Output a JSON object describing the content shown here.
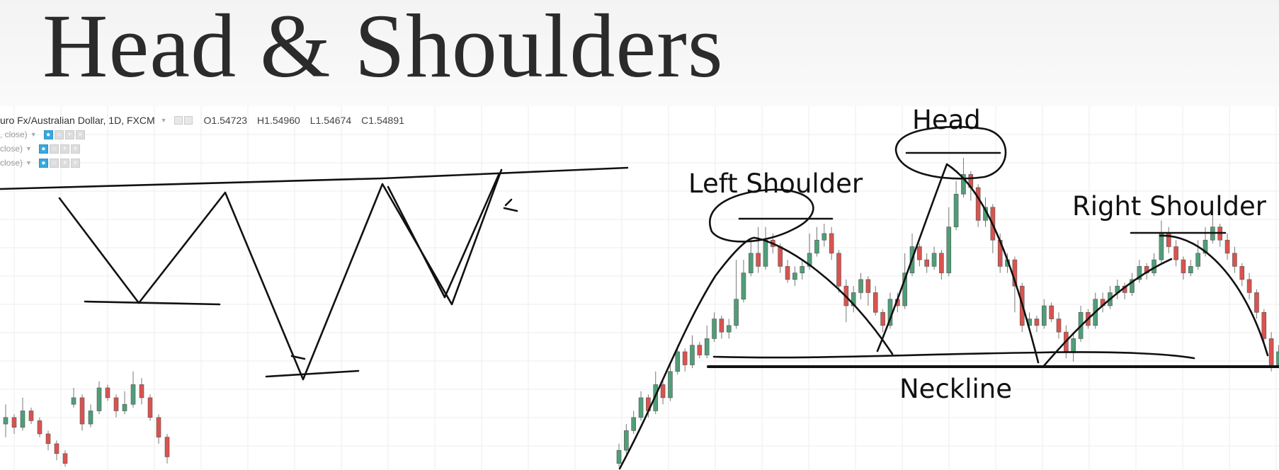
{
  "title": "Head & Shoulders",
  "symbol_bar": {
    "symbol": "uro Fx/Australian Dollar, 1D, FXCM",
    "open": "O1.54723",
    "high": "H1.54960",
    "low": "L1.54674",
    "close": "C1.54891"
  },
  "indicators": [
    ", close)",
    "close)",
    "close)"
  ],
  "annotations": {
    "head": "Head",
    "left_shoulder": "Left Shoulder",
    "right_shoulder": "Right Shoulder",
    "neckline": "Neckline"
  },
  "colors": {
    "up_candle": "#4f9e78",
    "down_candle": "#d9534f",
    "ink": "#111111",
    "grid": "#eeeeee",
    "eye_button": "#38a8e0"
  },
  "chart_data": {
    "type": "candlestick",
    "title": "Head & Shoulders",
    "price_scale": "unlabeled (higher = up)",
    "note": "Relative price levels read from the drawing (0 = bottom, 100 = top of chart area); axis values are not printed",
    "segments": [
      {
        "name": "left",
        "candles": [
          [
            14,
            16,
            20,
            10
          ],
          [
            16,
            13,
            17,
            11
          ],
          [
            13,
            18,
            22,
            12
          ],
          [
            18,
            15,
            19,
            14
          ],
          [
            15,
            11,
            16,
            10
          ],
          [
            11,
            8,
            12,
            6
          ],
          [
            8,
            5,
            9,
            3
          ],
          [
            5,
            2,
            6,
            1
          ],
          [
            20,
            22,
            25,
            19
          ],
          [
            22,
            14,
            23,
            12
          ],
          [
            14,
            18,
            20,
            13
          ],
          [
            18,
            25,
            27,
            17
          ],
          [
            25,
            22,
            26,
            21
          ],
          [
            22,
            18,
            23,
            16
          ],
          [
            18,
            20,
            24,
            17
          ],
          [
            20,
            26,
            30,
            19
          ],
          [
            26,
            22,
            28,
            20
          ],
          [
            22,
            16,
            23,
            15
          ],
          [
            16,
            10,
            17,
            8
          ],
          [
            10,
            4,
            11,
            2
          ]
        ]
      },
      {
        "name": "pattern",
        "candles": [
          [
            2,
            6,
            8,
            1
          ],
          [
            6,
            12,
            14,
            5
          ],
          [
            12,
            16,
            18,
            11
          ],
          [
            16,
            22,
            24,
            15
          ],
          [
            22,
            18,
            23,
            16
          ],
          [
            18,
            26,
            30,
            17
          ],
          [
            26,
            22,
            27,
            20
          ],
          [
            22,
            30,
            33,
            21
          ],
          [
            30,
            36,
            38,
            29
          ],
          [
            36,
            32,
            37,
            30
          ],
          [
            32,
            38,
            41,
            31
          ],
          [
            38,
            35,
            39,
            34
          ],
          [
            35,
            40,
            44,
            34
          ],
          [
            40,
            46,
            48,
            39
          ],
          [
            46,
            42,
            47,
            40
          ],
          [
            42,
            44,
            46,
            40
          ],
          [
            44,
            52,
            64,
            43
          ],
          [
            52,
            60,
            64,
            51
          ],
          [
            60,
            66,
            70,
            59
          ],
          [
            66,
            62,
            74,
            60
          ],
          [
            62,
            70,
            74,
            61
          ],
          [
            70,
            68,
            72,
            66
          ],
          [
            68,
            62,
            69,
            60
          ],
          [
            62,
            58,
            64,
            57
          ],
          [
            58,
            60,
            62,
            56
          ],
          [
            60,
            62,
            64,
            58
          ],
          [
            62,
            66,
            72,
            61
          ],
          [
            66,
            70,
            74,
            65
          ],
          [
            70,
            72,
            75,
            68
          ],
          [
            72,
            66,
            74,
            64
          ],
          [
            66,
            56,
            67,
            54
          ],
          [
            56,
            50,
            58,
            45
          ],
          [
            50,
            54,
            56,
            48
          ],
          [
            54,
            58,
            60,
            52
          ],
          [
            58,
            54,
            59,
            50
          ],
          [
            54,
            48,
            56,
            47
          ],
          [
            48,
            44,
            49,
            42
          ],
          [
            44,
            52,
            54,
            43
          ],
          [
            52,
            50,
            54,
            48
          ],
          [
            50,
            60,
            66,
            49
          ],
          [
            60,
            68,
            72,
            59
          ],
          [
            68,
            64,
            69,
            62
          ],
          [
            64,
            62,
            66,
            60
          ],
          [
            62,
            66,
            68,
            61
          ],
          [
            66,
            60,
            67,
            58
          ],
          [
            60,
            74,
            80,
            59
          ],
          [
            74,
            84,
            88,
            73
          ],
          [
            84,
            90,
            95,
            83
          ],
          [
            90,
            86,
            91,
            82
          ],
          [
            86,
            76,
            87,
            74
          ],
          [
            76,
            80,
            83,
            74
          ],
          [
            80,
            70,
            81,
            66
          ],
          [
            70,
            62,
            72,
            60
          ],
          [
            62,
            64,
            66,
            60
          ],
          [
            64,
            56,
            65,
            48
          ],
          [
            56,
            44,
            57,
            42
          ],
          [
            44,
            46,
            48,
            43
          ],
          [
            46,
            44,
            47,
            42
          ],
          [
            44,
            50,
            52,
            43
          ],
          [
            50,
            46,
            51,
            45
          ],
          [
            46,
            42,
            48,
            40
          ],
          [
            42,
            36,
            44,
            34
          ],
          [
            36,
            40,
            42,
            33
          ],
          [
            40,
            48,
            50,
            39
          ],
          [
            48,
            44,
            49,
            43
          ],
          [
            44,
            52,
            54,
            43
          ],
          [
            52,
            50,
            54,
            48
          ],
          [
            50,
            54,
            56,
            49
          ],
          [
            54,
            56,
            58,
            52
          ],
          [
            56,
            54,
            57,
            52
          ],
          [
            54,
            58,
            60,
            53
          ],
          [
            58,
            62,
            64,
            57
          ],
          [
            62,
            60,
            63,
            58
          ],
          [
            60,
            64,
            66,
            59
          ],
          [
            64,
            72,
            76,
            63
          ],
          [
            72,
            68,
            74,
            66
          ],
          [
            68,
            64,
            70,
            62
          ],
          [
            64,
            60,
            65,
            58
          ],
          [
            60,
            62,
            64,
            59
          ],
          [
            62,
            66,
            70,
            61
          ],
          [
            66,
            70,
            74,
            65
          ],
          [
            70,
            74,
            78,
            69
          ],
          [
            74,
            70,
            75,
            68
          ],
          [
            70,
            66,
            72,
            64
          ],
          [
            66,
            62,
            68,
            60
          ],
          [
            62,
            58,
            63,
            56
          ],
          [
            58,
            54,
            60,
            52
          ],
          [
            54,
            48,
            55,
            46
          ],
          [
            48,
            40,
            49,
            38
          ],
          [
            40,
            32,
            42,
            30
          ],
          [
            32,
            36,
            38,
            31
          ],
          [
            36,
            26,
            37,
            22
          ]
        ]
      }
    ]
  }
}
